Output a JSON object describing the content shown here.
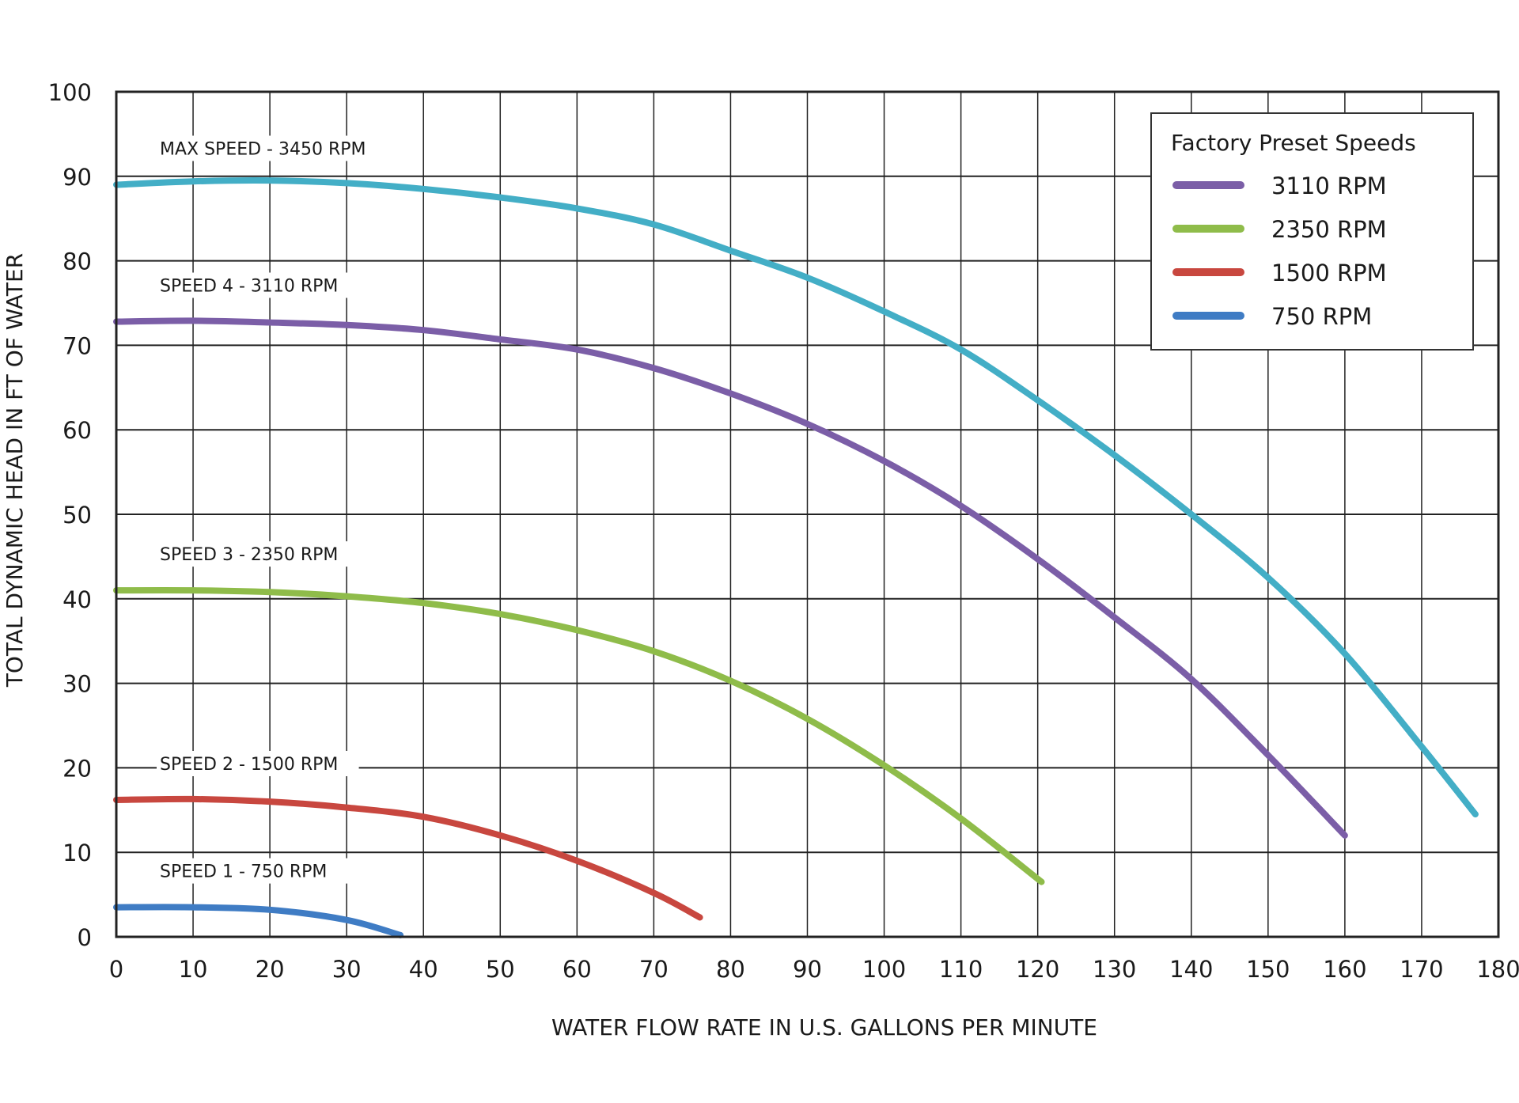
{
  "chart_data": {
    "type": "line",
    "xlabel": "WATER FLOW RATE IN U.S. GALLONS PER MINUTE",
    "ylabel": "TOTAL DYNAMIC HEAD IN FT OF WATER",
    "xlim": [
      0,
      180
    ],
    "ylim": [
      0,
      100
    ],
    "xticks": [
      0,
      10,
      20,
      30,
      40,
      50,
      60,
      70,
      80,
      90,
      100,
      110,
      120,
      130,
      140,
      150,
      160,
      170,
      180
    ],
    "yticks": [
      0,
      10,
      20,
      30,
      40,
      50,
      60,
      70,
      80,
      90,
      100
    ],
    "grid": true,
    "legend": {
      "title": "Factory Preset Speeds",
      "placement": "top-right",
      "entries": [
        {
          "label": "3110 RPM",
          "color": "#7b5ea7"
        },
        {
          "label": "2350 RPM",
          "color": "#8fbc4a"
        },
        {
          "label": "1500 RPM",
          "color": "#c8473f"
        },
        {
          "label": "750 RPM",
          "color": "#3f7cc4"
        }
      ]
    },
    "series": [
      {
        "name": "MAX SPEED - 3450 RPM",
        "color": "#43aec6",
        "x": [
          0,
          10,
          20,
          30,
          40,
          50,
          60,
          70,
          80,
          90,
          100,
          110,
          120,
          130,
          140,
          150,
          160,
          170,
          177
        ],
        "y": [
          89,
          89.4,
          89.5,
          89.2,
          88.5,
          87.5,
          86.2,
          84.3,
          81.2,
          78,
          74,
          69.5,
          63.5,
          57,
          50,
          42.5,
          33.5,
          22.5,
          14.5
        ]
      },
      {
        "name": "SPEED 4 - 3110 RPM",
        "color": "#7b5ea7",
        "x": [
          0,
          10,
          20,
          30,
          40,
          50,
          60,
          70,
          80,
          90,
          100,
          110,
          120,
          130,
          140,
          150,
          160
        ],
        "y": [
          72.8,
          72.9,
          72.7,
          72.4,
          71.8,
          70.7,
          69.5,
          67.3,
          64.3,
          60.7,
          56.3,
          51,
          44.7,
          37.8,
          30.5,
          21.5,
          12
        ]
      },
      {
        "name": "SPEED 3 - 2350 RPM",
        "color": "#8fbc4a",
        "x": [
          0,
          10,
          20,
          30,
          40,
          50,
          60,
          70,
          80,
          90,
          100,
          110,
          120.5
        ],
        "y": [
          41,
          41,
          40.8,
          40.3,
          39.5,
          38.2,
          36.3,
          33.8,
          30.3,
          25.8,
          20.3,
          14,
          6.5
        ]
      },
      {
        "name": "SPEED 2 - 1500 RPM",
        "color": "#c8473f",
        "x": [
          0,
          10,
          20,
          30,
          40,
          50,
          60,
          70,
          76
        ],
        "y": [
          16.2,
          16.3,
          16,
          15.3,
          14.2,
          12,
          9,
          5.2,
          2.3
        ]
      },
      {
        "name": "SPEED 1 - 750 RPM",
        "color": "#3f7cc4",
        "x": [
          0,
          10,
          20,
          30,
          37
        ],
        "y": [
          3.5,
          3.5,
          3.2,
          2,
          0.2
        ]
      }
    ]
  }
}
